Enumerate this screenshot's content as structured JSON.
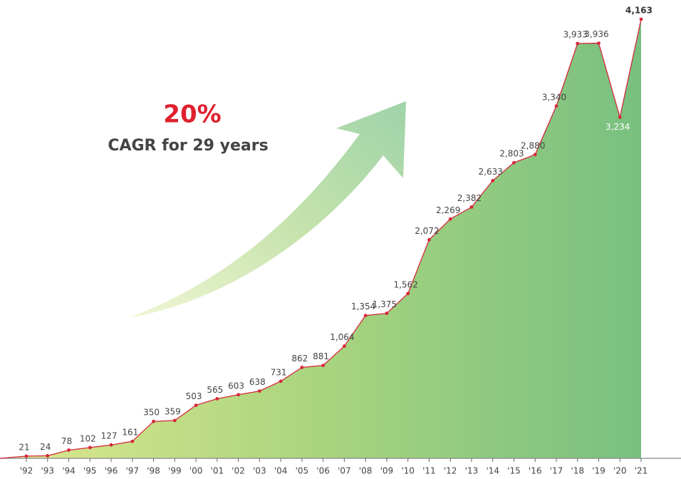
{
  "chart_data": {
    "type": "line",
    "annotations": [
      "20%",
      "CAGR for 29 years"
    ],
    "categories": [
      "'92",
      "'93",
      "'94",
      "'95",
      "'96",
      "'97",
      "'98",
      "'99",
      "'00",
      "'01",
      "'02",
      "'03",
      "'04",
      "'05",
      "'06",
      "'07",
      "'08",
      "'09",
      "'10",
      "'11",
      "'12",
      "'13",
      "'14",
      "'15",
      "'16",
      "'17",
      "'18",
      "'19",
      "'20",
      "'21"
    ],
    "values": [
      21,
      24,
      78,
      102,
      127,
      161,
      350,
      359,
      503,
      565,
      603,
      638,
      731,
      862,
      881,
      1064,
      1354,
      1375,
      1562,
      2072,
      2269,
      2382,
      2633,
      2803,
      2880,
      3340,
      3933,
      3936,
      3234,
      4163
    ],
    "value_labels": [
      "21",
      "24",
      "78",
      "102",
      "127",
      "161",
      "350",
      "359",
      "503",
      "565",
      "603",
      "638",
      "731",
      "862",
      "881",
      "1,064",
      "1,354",
      "1,375",
      "1,562",
      "2,072",
      "2,269",
      "2,382",
      "2,633",
      "2,803",
      "2,880",
      "3,340",
      "3,933",
      "3,936",
      "3,234",
      "4,163"
    ],
    "color": "#d6283a"
  }
}
